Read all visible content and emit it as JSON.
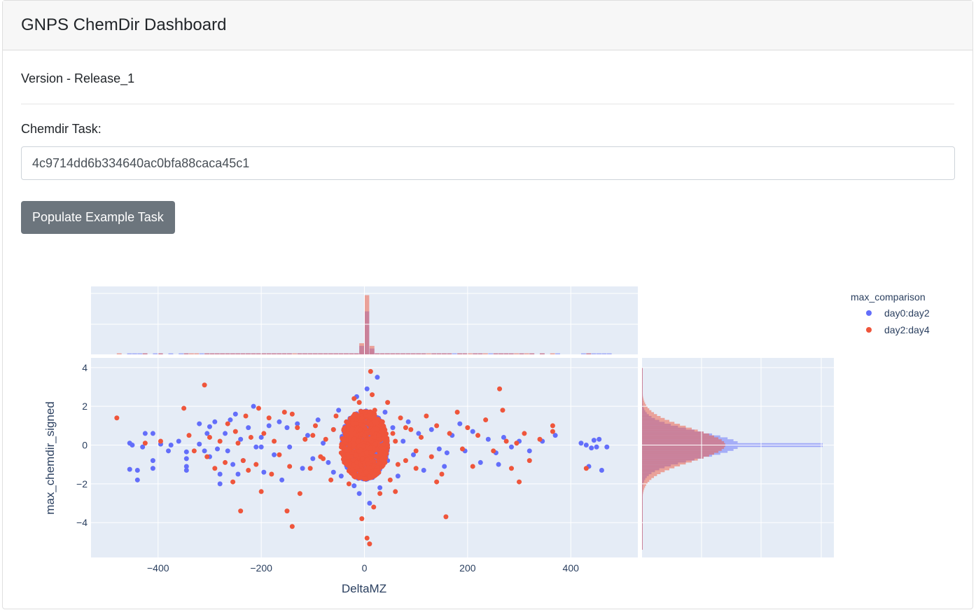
{
  "header": {
    "title": "GNPS ChemDir Dashboard"
  },
  "version_text": "Version - Release_1",
  "task": {
    "label": "Chemdir Task:",
    "value": "4c9714dd6b334640ac0bfa88caca45c1"
  },
  "populate_button": "Populate Example Task",
  "colors": {
    "day0_day2": "#636efa",
    "day2_day4": "#ef553b",
    "plot_bg": "#e5ecf6"
  },
  "chart_data": {
    "type": "scatter",
    "xlabel": "DeltaMZ",
    "ylabel": "max_chemdir_signed",
    "xlim": [
      -530,
      530
    ],
    "ylim": [
      -5.8,
      4.5
    ],
    "x_ticks": [
      -400,
      -200,
      0,
      200,
      400
    ],
    "x_tick_labels": [
      "−400",
      "−200",
      "0",
      "200",
      "400"
    ],
    "y_ticks": [
      4,
      2,
      0,
      -2,
      -4
    ],
    "y_tick_labels": [
      "4",
      "2",
      "0",
      "−2",
      "−4"
    ],
    "grid": true,
    "legend": {
      "title": "max_comparison",
      "position": "top-right"
    },
    "marginal_x": "histogram",
    "marginal_y": "histogram",
    "series": [
      {
        "name": "day0:day2",
        "color": "#636efa",
        "points": [
          [
            -455,
            0.1
          ],
          [
            -450,
            0
          ],
          [
            -455,
            -1.25
          ],
          [
            -440,
            -1.3
          ],
          [
            -440,
            -1.8
          ],
          [
            -430,
            -0.1
          ],
          [
            -425,
            0.6
          ],
          [
            -410,
            0.6
          ],
          [
            -410,
            -0.8
          ],
          [
            -410,
            -1.2
          ],
          [
            -395,
            0.05
          ],
          [
            -380,
            -0.3
          ],
          [
            -375,
            0
          ],
          [
            -360,
            0.2
          ],
          [
            -345,
            -0.35
          ],
          [
            -345,
            -0.7
          ],
          [
            -345,
            -1.1
          ],
          [
            -345,
            -1.3
          ],
          [
            -320,
            1.1
          ],
          [
            -320,
            0.05
          ],
          [
            -310,
            -0.3
          ],
          [
            -305,
            0.6
          ],
          [
            -300,
            0.95
          ],
          [
            -300,
            -0.6
          ],
          [
            -290,
            1.2
          ],
          [
            -285,
            -0.2
          ],
          [
            -280,
            -1.5
          ],
          [
            -280,
            -2.0
          ],
          [
            -270,
            0.6
          ],
          [
            -265,
            -0.3
          ],
          [
            -260,
            1.3
          ],
          [
            -255,
            -1.0
          ],
          [
            -250,
            1.6
          ],
          [
            -245,
            -1.5
          ],
          [
            -240,
            0.3
          ],
          [
            -235,
            -0.8
          ],
          [
            -225,
            0.9
          ],
          [
            -215,
            2.0
          ],
          [
            -210,
            -0.1
          ],
          [
            -200,
            0.4
          ],
          [
            -195,
            -1.4
          ],
          [
            -185,
            1.0
          ],
          [
            -175,
            -0.5
          ],
          [
            -165,
            1.2
          ],
          [
            -160,
            -1.8
          ],
          [
            -150,
            0.9
          ],
          [
            -145,
            -0.1
          ],
          [
            -130,
            1.1
          ],
          [
            -120,
            -1.2
          ],
          [
            -110,
            0.5
          ],
          [
            -100,
            -0.7
          ],
          [
            -90,
            1.3
          ],
          [
            -80,
            0.1
          ],
          [
            -70,
            -0.9
          ],
          [
            -60,
            0.8
          ],
          [
            -50,
            1.8
          ],
          [
            -45,
            -1.6
          ],
          [
            -40,
            0.3
          ],
          [
            -30,
            -0.4
          ],
          [
            -25,
            1.4
          ],
          [
            -20,
            -2.1
          ],
          [
            -15,
            2.5
          ],
          [
            -10,
            -2.5
          ],
          [
            -5,
            0.6
          ],
          [
            0,
            -0.3
          ],
          [
            5,
            2.9
          ],
          [
            10,
            -3.0
          ],
          [
            15,
            1.0
          ],
          [
            20,
            -1.0
          ],
          [
            25,
            3.5
          ],
          [
            30,
            -2.2
          ],
          [
            35,
            0.4
          ],
          [
            40,
            1.7
          ],
          [
            45,
            -0.8
          ],
          [
            55,
            0.9
          ],
          [
            65,
            -1.6
          ],
          [
            75,
            0.2
          ],
          [
            85,
            1.2
          ],
          [
            95,
            -0.5
          ],
          [
            105,
            0.6
          ],
          [
            115,
            -1.3
          ],
          [
            130,
            0.8
          ],
          [
            145,
            -0.2
          ],
          [
            155,
            -1.1
          ],
          [
            170,
            0.5
          ],
          [
            185,
            1.1
          ],
          [
            195,
            -0.3
          ],
          [
            210,
            0.7
          ],
          [
            225,
            -0.9
          ],
          [
            240,
            0.3
          ],
          [
            255,
            -0.4
          ],
          [
            270,
            0.4
          ],
          [
            285,
            -0.1
          ],
          [
            300,
            0.2
          ],
          [
            320,
            -0.3
          ],
          [
            345,
            0.2
          ],
          [
            370,
            0.5
          ],
          [
            420,
            0.1
          ],
          [
            430,
            0
          ],
          [
            440,
            -0.15
          ],
          [
            445,
            0.25
          ],
          [
            450,
            -0.1
          ],
          [
            455,
            0.3
          ],
          [
            460,
            -1.3
          ],
          [
            470,
            -0.1
          ],
          [
            435,
            -1.1
          ],
          [
            -200,
            -0.1
          ],
          [
            160,
            -0.4
          ],
          [
            260,
            -1.0
          ],
          [
            -60,
            -1.4
          ]
        ]
      },
      {
        "name": "day2:day4",
        "color": "#ef553b",
        "points": [
          [
            -480,
            1.4
          ],
          [
            -425,
            0.1
          ],
          [
            -395,
            0.2
          ],
          [
            -350,
            1.9
          ],
          [
            -340,
            0.5
          ],
          [
            -330,
            -0.3
          ],
          [
            -310,
            3.1
          ],
          [
            -305,
            -0.6
          ],
          [
            -300,
            0.4
          ],
          [
            -290,
            -1.2
          ],
          [
            -280,
            0.2
          ],
          [
            -270,
            -0.9
          ],
          [
            -265,
            1.1
          ],
          [
            -255,
            -1.9
          ],
          [
            -250,
            0.7
          ],
          [
            -245,
            0.1
          ],
          [
            -240,
            -3.4
          ],
          [
            -235,
            -0.8
          ],
          [
            -230,
            1.5
          ],
          [
            -225,
            -1.3
          ],
          [
            -220,
            0.4
          ],
          [
            -210,
            -1.0
          ],
          [
            -205,
            1.9
          ],
          [
            -200,
            -2.4
          ],
          [
            -195,
            0.6
          ],
          [
            -185,
            1.4
          ],
          [
            -180,
            -1.5
          ],
          [
            -175,
            0.2
          ],
          [
            -165,
            -0.5
          ],
          [
            -155,
            1.7
          ],
          [
            -150,
            -3.4
          ],
          [
            -145,
            -1.1
          ],
          [
            -140,
            -4.2
          ],
          [
            -130,
            0.9
          ],
          [
            -125,
            -2.5
          ],
          [
            -115,
            0.3
          ],
          [
            -105,
            -1.2
          ],
          [
            -95,
            1.0
          ],
          [
            -85,
            -0.6
          ],
          [
            -75,
            0.3
          ],
          [
            -65,
            -1.8
          ],
          [
            -55,
            1.5
          ],
          [
            -45,
            -0.4
          ],
          [
            -35,
            1.2
          ],
          [
            -30,
            -2.0
          ],
          [
            -25,
            0.6
          ],
          [
            -20,
            2.4
          ],
          [
            -15,
            -0.9
          ],
          [
            -10,
            2.2
          ],
          [
            -5,
            -3.8
          ],
          [
            0,
            0.5
          ],
          [
            5,
            -4.8
          ],
          [
            8,
            1.5
          ],
          [
            10,
            -5.1
          ],
          [
            12,
            3.8
          ],
          [
            15,
            2.6
          ],
          [
            18,
            -3.2
          ],
          [
            20,
            1.8
          ],
          [
            22,
            -1.3
          ],
          [
            25,
            0.8
          ],
          [
            30,
            -2.5
          ],
          [
            35,
            1.2
          ],
          [
            40,
            -0.5
          ],
          [
            45,
            2.2
          ],
          [
            50,
            -1.8
          ],
          [
            55,
            0.6
          ],
          [
            60,
            0.2
          ],
          [
            65,
            -1.0
          ],
          [
            70,
            1.4
          ],
          [
            80,
            -0.8
          ],
          [
            90,
            0.8
          ],
          [
            100,
            -1.2
          ],
          [
            110,
            0.4
          ],
          [
            120,
            1.5
          ],
          [
            130,
            -0.6
          ],
          [
            140,
            1.0
          ],
          [
            150,
            -1.5
          ],
          [
            158,
            -3.7
          ],
          [
            165,
            0.6
          ],
          [
            180,
            1.7
          ],
          [
            190,
            -0.2
          ],
          [
            200,
            0.9
          ],
          [
            210,
            -1.1
          ],
          [
            220,
            0.5
          ],
          [
            235,
            1.3
          ],
          [
            250,
            -0.3
          ],
          [
            262,
            2.9
          ],
          [
            268,
            1.8
          ],
          [
            275,
            0.2
          ],
          [
            285,
            -1.2
          ],
          [
            295,
            0.1
          ],
          [
            300,
            -1.9
          ],
          [
            310,
            0.6
          ],
          [
            320,
            -0.8
          ],
          [
            340,
            0.3
          ],
          [
            365,
            1.0
          ],
          [
            365,
            0.7
          ],
          [
            430,
            -1.2
          ],
          [
            -60,
            0.8
          ],
          [
            60,
            -2.4
          ],
          [
            -100,
            0.5
          ],
          [
            100,
            -0.3
          ],
          [
            -20,
            -1.5
          ],
          [
            20,
            1.2
          ],
          [
            -40,
            0.2
          ],
          [
            40,
            -0.9
          ],
          [
            -80,
            -0.7
          ],
          [
            80,
            0.9
          ],
          [
            140,
            -1.9
          ],
          [
            -140,
            1.6
          ]
        ]
      }
    ]
  }
}
